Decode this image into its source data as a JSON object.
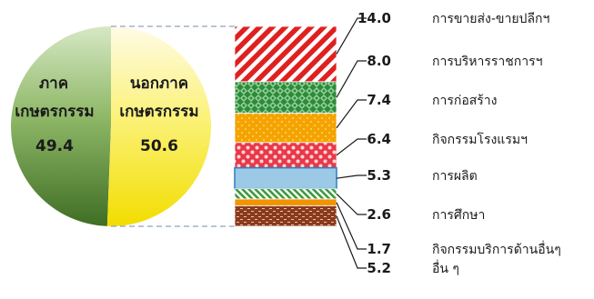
{
  "chart_data": [
    {
      "type": "pie",
      "categories": [
        "ภาคเกษตรกรรม",
        "นอกภาคเกษตรกรรม"
      ],
      "label_lines": [
        [
          "ภาค",
          "เกษตรกรรม"
        ],
        [
          "นอกภาค",
          "เกษตรกรรม"
        ]
      ],
      "values": [
        49.4,
        50.6
      ],
      "value_labels": [
        "49.4",
        "50.6"
      ],
      "colors": [
        "#6f9a4a",
        "#f7ea3a"
      ]
    },
    {
      "type": "bar",
      "stacked": true,
      "categories": [
        "การขายส่ง-ขายปลีกฯ",
        "การบริหารราชการฯ",
        "การก่อสร้าง",
        "กิจกรรมโรงแรมฯ",
        "การผลิต",
        "การศึกษา",
        "กิจกรรมบริการด้านอื่นๆ",
        "อื่น ๆ"
      ],
      "values": [
        14.0,
        8.0,
        7.4,
        6.4,
        5.3,
        2.6,
        1.7,
        5.2
      ],
      "value_labels": [
        "14.0",
        "8.0",
        "7.4",
        "6.4",
        "5.3",
        "2.6",
        "1.7",
        "5.2"
      ],
      "patterns": [
        "red-diagonal-stripes",
        "green-diamond",
        "orange-dots",
        "red-checker",
        "blue-solid",
        "green-diagonal",
        "orange-solid",
        "brown-brick"
      ],
      "colors": [
        "#e02020",
        "#2e8b3a",
        "#f4a300",
        "#e8384a",
        "#9cc9e6",
        "#3a9a3a",
        "#f29400",
        "#8b3a1e"
      ]
    }
  ]
}
